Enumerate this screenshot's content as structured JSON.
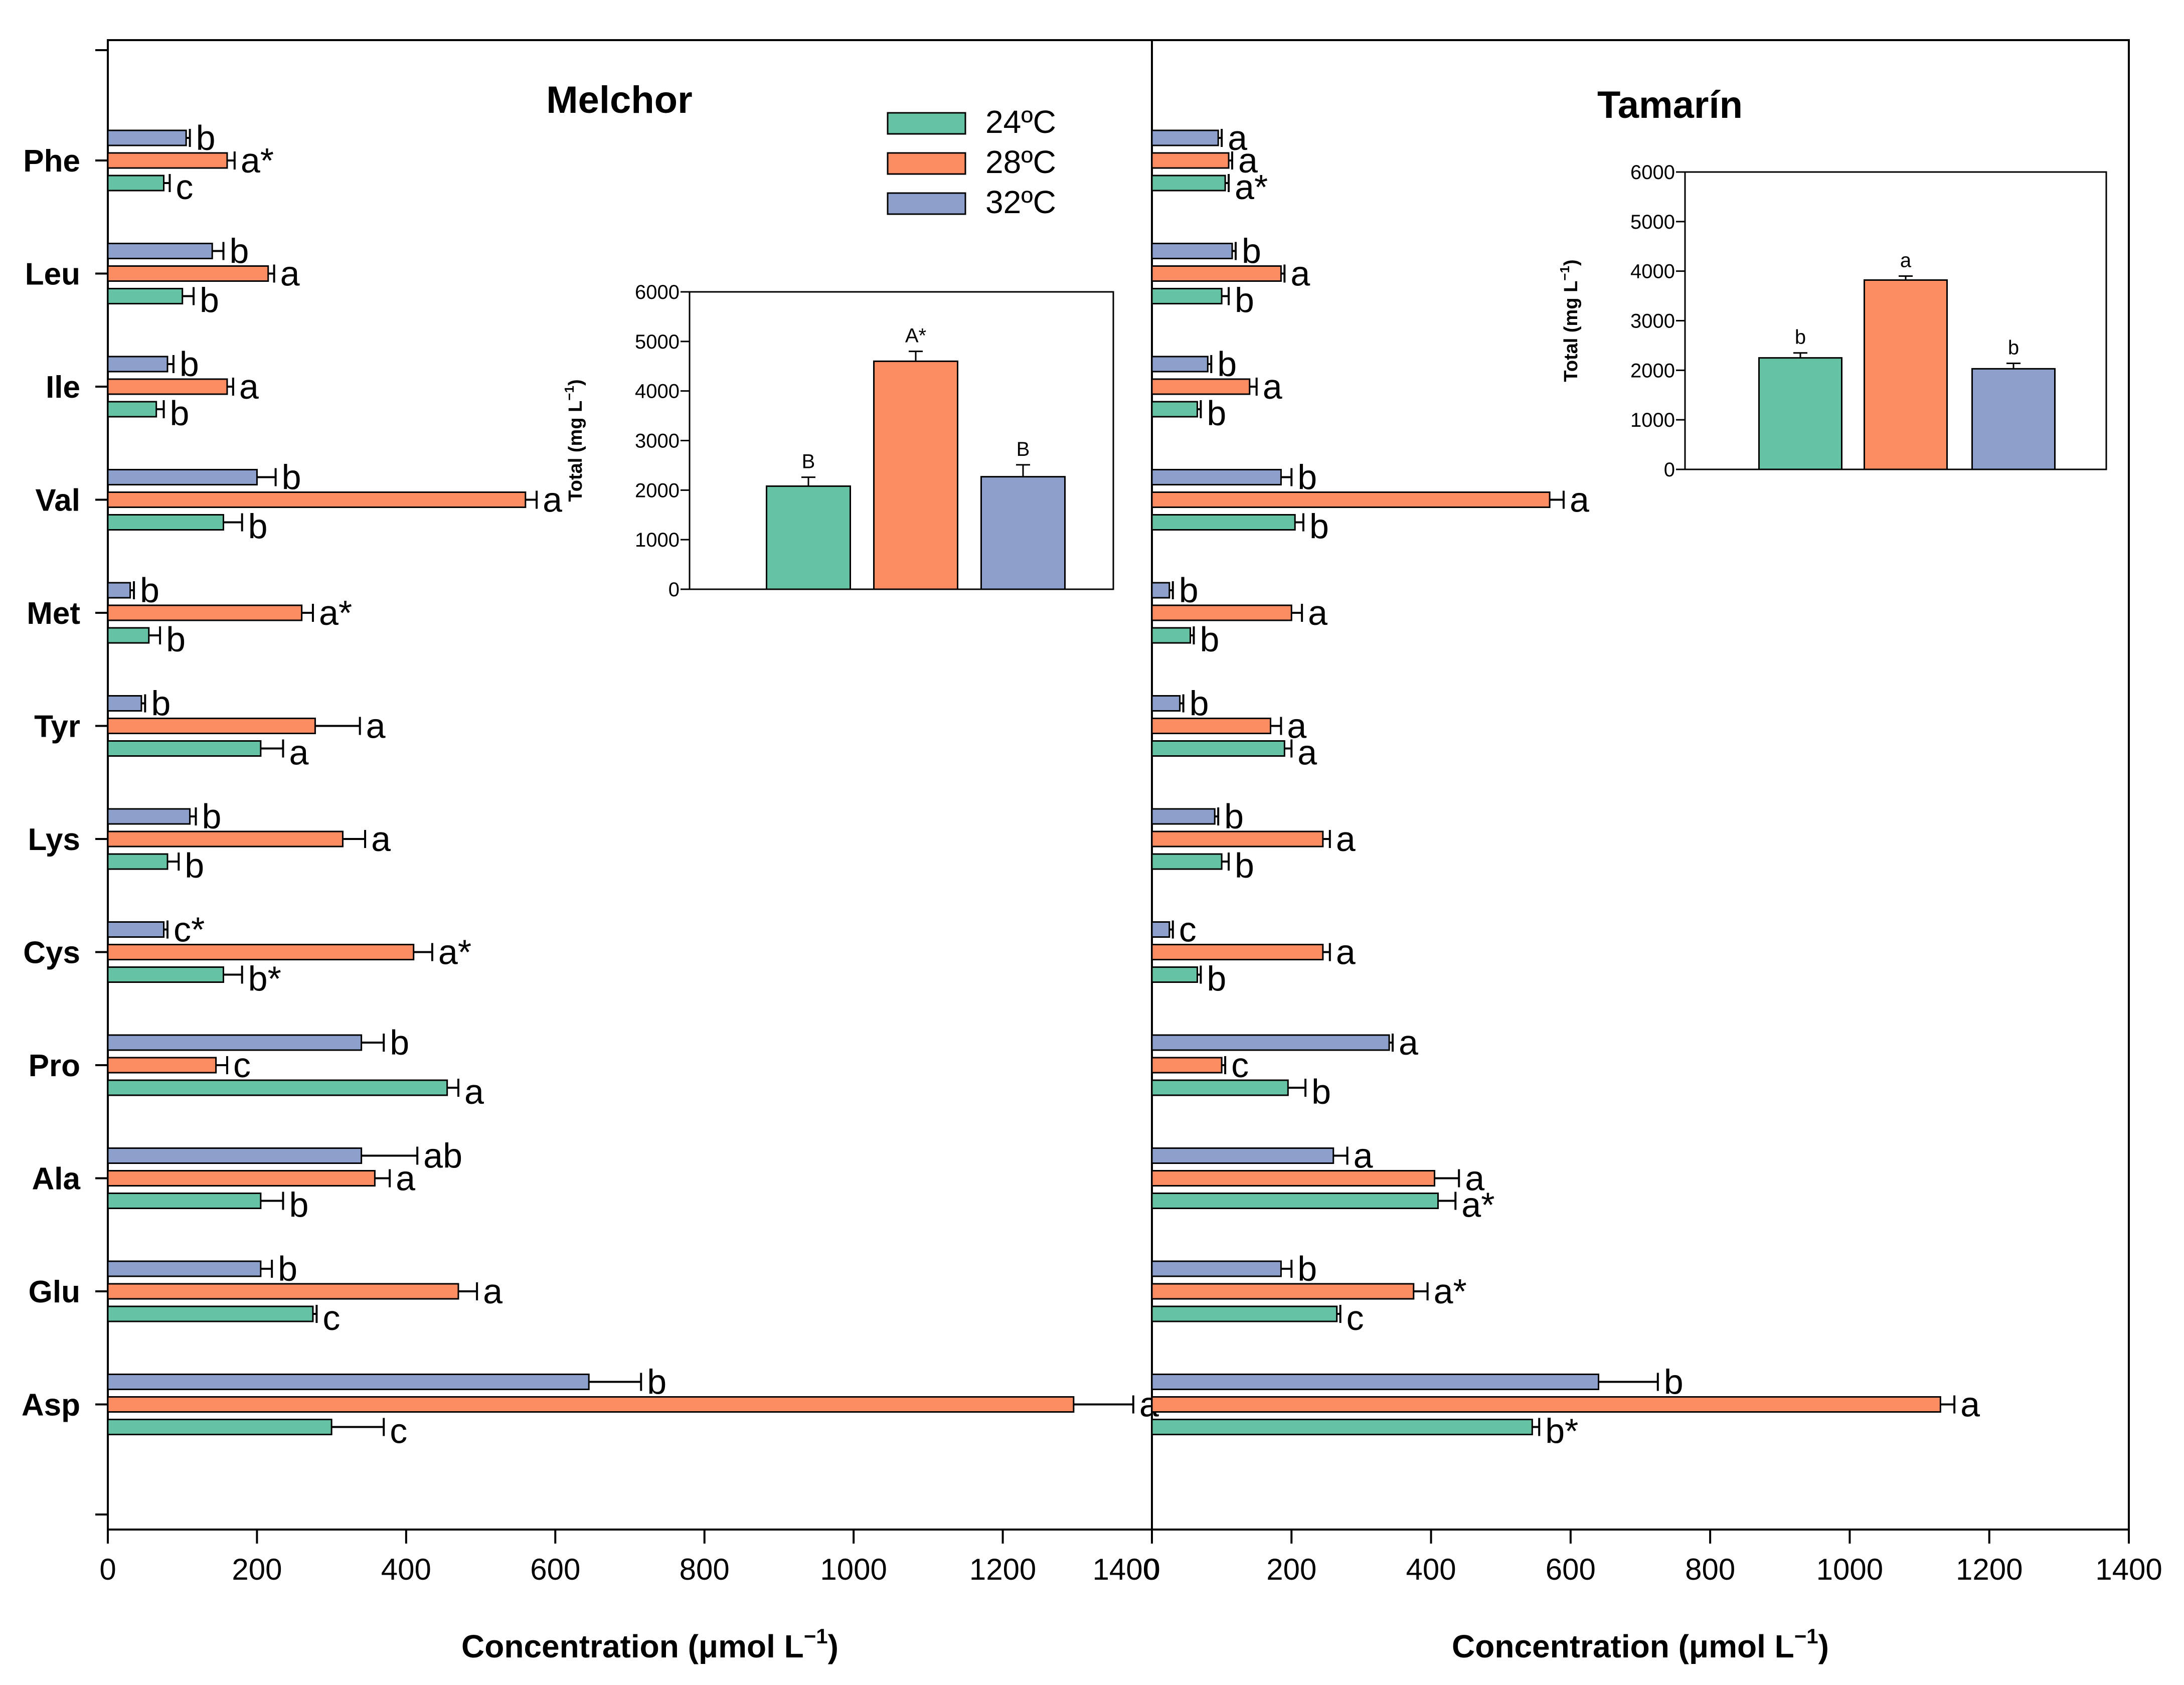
{
  "chart_data": {
    "type": "bar",
    "orientation": "horizontal",
    "categories": [
      "Phe",
      "Leu",
      "Ile",
      "Val",
      "Met",
      "Tyr",
      "Lys",
      "Cys",
      "Pro",
      "Ala",
      "Glu",
      "Asp"
    ],
    "legend": {
      "position": "top",
      "entries": [
        {
          "name": "24ºC",
          "color": "#66c2a5"
        },
        {
          "name": "28ºC",
          "color": "#fc8d62"
        },
        {
          "name": "32ºC",
          "color": "#8da0cb"
        }
      ]
    },
    "xlabel_prefix": "Concentration (",
    "xlabel_unit": "μmol L",
    "xlabel_sup": "−1",
    "xlabel_suffix": ")",
    "xlim": [
      0,
      1400
    ],
    "xticks": [
      "0",
      "200",
      "400",
      "600",
      "800",
      "1000",
      "1200",
      "1400"
    ],
    "panels": [
      {
        "title": "Melchor",
        "series": [
          {
            "name": "24ºC",
            "values": [
              75,
              100,
              65,
              155,
              55,
              205,
              80,
              155,
              455,
              205,
              275,
              300
            ],
            "errors": [
              8,
              15,
              10,
              25,
              15,
              30,
              15,
              25,
              15,
              30,
              5,
              70
            ],
            "letters": [
              "c",
              "b",
              "b",
              "b",
              "b",
              "a",
              "b",
              "b*",
              "a",
              "b",
              "c",
              "c"
            ]
          },
          {
            "name": "28ºC",
            "values": [
              160,
              215,
              160,
              560,
              260,
              278,
              315,
              410,
              145,
              358,
              470,
              1295
            ],
            "errors": [
              10,
              8,
              8,
              15,
              15,
              60,
              30,
              25,
              15,
              20,
              25,
              80
            ],
            "letters": [
              "a*",
              "a",
              "a",
              "a",
              "a*",
              "a",
              "a",
              "a*",
              "c",
              "a",
              "a",
              "a"
            ]
          },
          {
            "name": "32ºC",
            "values": [
              105,
              140,
              80,
              200,
              30,
              45,
              110,
              75,
              340,
              340,
              205,
              645
            ],
            "errors": [
              5,
              15,
              8,
              25,
              5,
              5,
              8,
              5,
              30,
              75,
              15,
              70
            ],
            "letters": [
              "b",
              "b",
              "b",
              "b",
              "b",
              "b",
              "b",
              "c*",
              "b",
              "ab",
              "b",
              "b"
            ]
          }
        ],
        "inset": {
          "ylabel_prefix": "Total (mg L",
          "ylabel_sup": "−1",
          "ylabel_suffix": ")",
          "ylim": [
            0,
            6000
          ],
          "yticks": [
            "0",
            "1000",
            "2000",
            "3000",
            "4000",
            "5000",
            "6000"
          ],
          "values": [
            2080,
            4600,
            2270
          ],
          "errors": [
            180,
            200,
            240
          ],
          "letters": [
            "B",
            "A*",
            "B"
          ]
        }
      },
      {
        "title": "Tamarín",
        "series": [
          {
            "name": "24ºC",
            "values": [
              105,
              100,
              65,
              205,
              55,
              190,
              100,
              65,
              195,
              410,
              265,
              545
            ],
            "errors": [
              5,
              10,
              5,
              12,
              5,
              10,
              10,
              5,
              25,
              25,
              5,
              10
            ],
            "letters": [
              "a*",
              "b",
              "b",
              "b",
              "b",
              "a",
              "b",
              "b",
              "b",
              "a*",
              "c",
              "b*"
            ]
          },
          {
            "name": "28ºC",
            "values": [
              110,
              185,
              140,
              570,
              200,
              170,
              245,
              245,
              100,
              405,
              375,
              1130
            ],
            "errors": [
              5,
              5,
              10,
              20,
              15,
              15,
              10,
              10,
              5,
              35,
              20,
              20
            ],
            "letters": [
              "a",
              "a",
              "a",
              "a",
              "a",
              "a",
              "a",
              "a",
              "c",
              "a",
              "a*",
              "a"
            ]
          },
          {
            "name": "32ºC",
            "values": [
              95,
              115,
              80,
              185,
              25,
              40,
              90,
              25,
              340,
              260,
              185,
              640
            ],
            "errors": [
              5,
              5,
              5,
              15,
              5,
              5,
              5,
              5,
              5,
              20,
              15,
              85
            ],
            "letters": [
              "a",
              "b",
              "b",
              "b",
              "b",
              "b",
              "b",
              "c",
              "a",
              "a",
              "b",
              "b"
            ]
          }
        ],
        "inset": {
          "ylabel_prefix": "Total (mg L",
          "ylabel_sup": "−1",
          "ylabel_suffix": ")",
          "ylim": [
            0,
            6000
          ],
          "yticks": [
            "0",
            "1000",
            "2000",
            "3000",
            "4000",
            "5000",
            "6000"
          ],
          "values": [
            2250,
            3820,
            2030
          ],
          "errors": [
            100,
            80,
            110
          ],
          "letters": [
            "b",
            "a",
            "b"
          ]
        }
      }
    ]
  }
}
